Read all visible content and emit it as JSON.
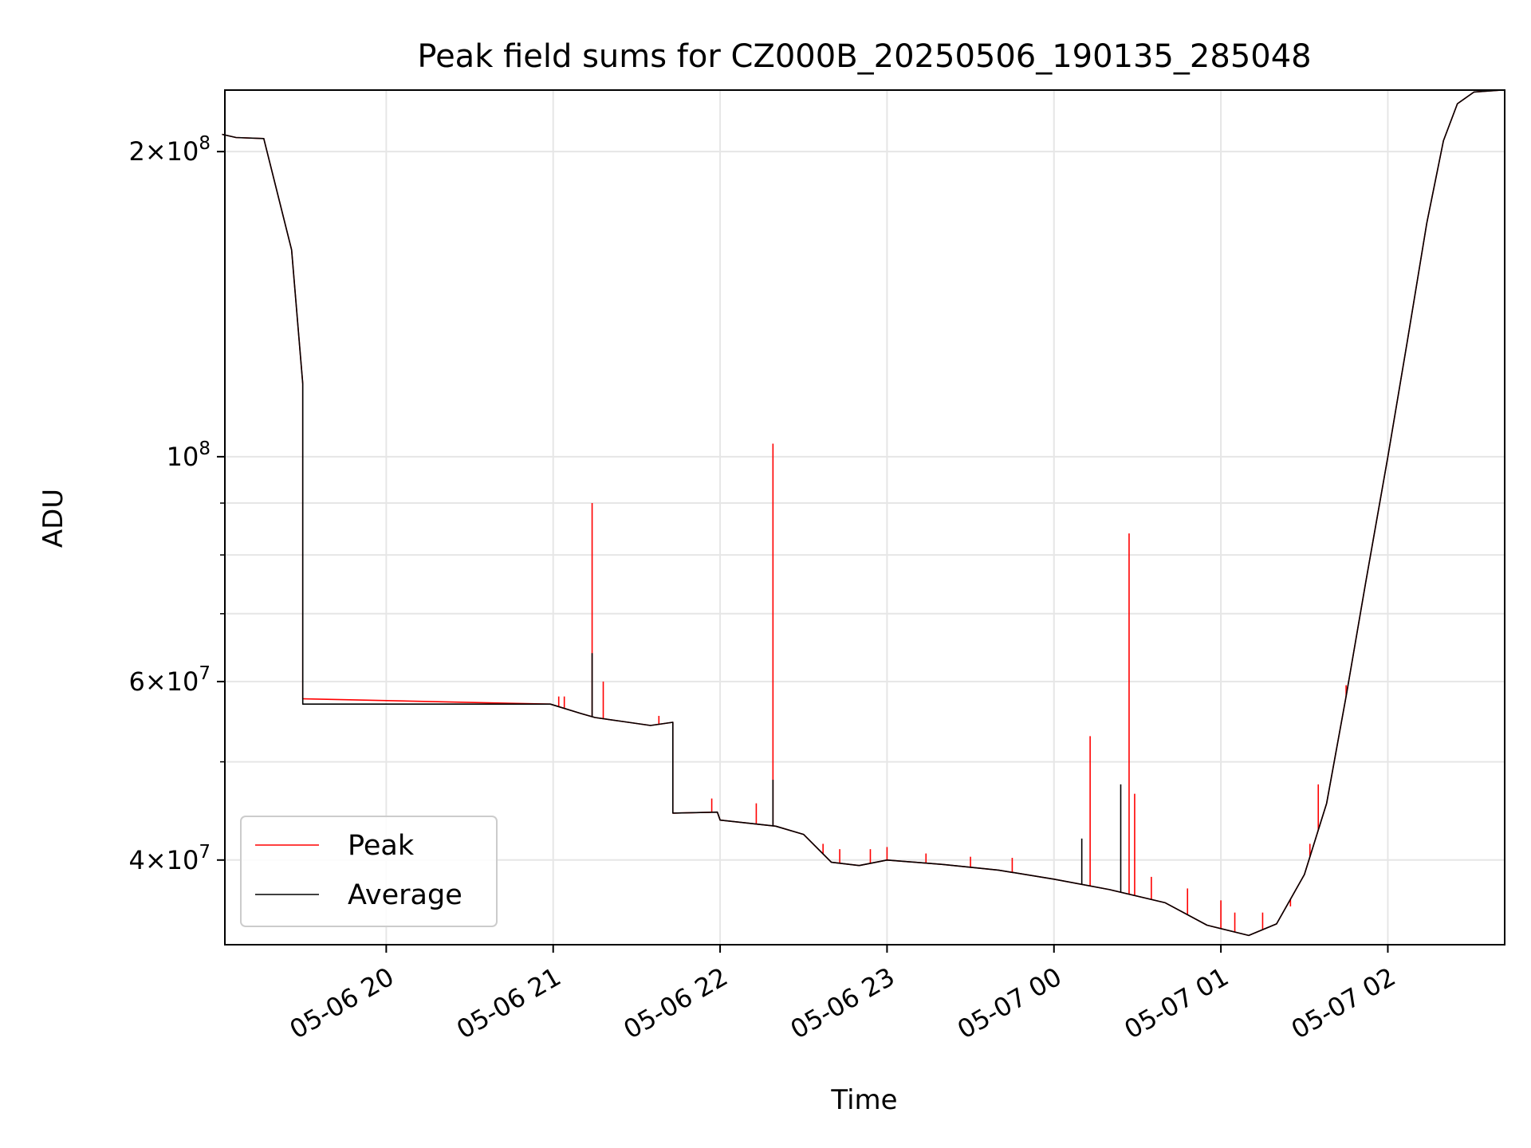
{
  "chart_data": {
    "type": "line",
    "title": "Peak field sums for CZ000B_20250506_190135_285048",
    "xlabel": "Time",
    "ylabel": "ADU",
    "x_scale": "time",
    "y_scale": "log",
    "xlim": [
      "2025-05-06 19:02",
      "2025-05-07 02:42"
    ],
    "ylim": [
      33000000,
      230000000
    ],
    "grid": true,
    "legend_position": "lower-left",
    "x_ticks": [
      {
        "t": "2025-05-06 20:00",
        "label": "05-06 20"
      },
      {
        "t": "2025-05-06 21:00",
        "label": "05-06 21"
      },
      {
        "t": "2025-05-06 22:00",
        "label": "05-06 22"
      },
      {
        "t": "2025-05-06 23:00",
        "label": "05-06 23"
      },
      {
        "t": "2025-05-07 00:00",
        "label": "05-07 00"
      },
      {
        "t": "2025-05-07 01:00",
        "label": "05-07 01"
      },
      {
        "t": "2025-05-07 02:00",
        "label": "05-07 02"
      }
    ],
    "y_ticks_major": [
      {
        "value": 40000000,
        "mantissa": "4",
        "exp": "7"
      },
      {
        "value": 60000000,
        "mantissa": "6",
        "exp": "7"
      },
      {
        "value": 100000000,
        "mantissa": "",
        "exp": "8"
      },
      {
        "value": 200000000,
        "mantissa": "2",
        "exp": "8"
      }
    ],
    "y_ticks_minor": [
      50000000,
      70000000,
      80000000,
      90000000
    ],
    "series": [
      {
        "name": "Average",
        "color": "#000000",
        "points": [
          [
            "2025-05-06 19:01",
            208000000
          ],
          [
            "2025-05-06 19:06",
            206500000
          ],
          [
            "2025-05-06 19:16",
            206000000
          ],
          [
            "2025-05-06 19:26",
            160000000
          ],
          [
            "2025-05-06 19:30",
            118000000
          ],
          [
            "2025-05-06 19:30",
            57000000
          ],
          [
            "2025-05-06 20:59",
            57000000
          ],
          [
            "2025-05-06 21:10",
            55800000
          ],
          [
            "2025-05-06 21:15",
            55300000
          ],
          [
            "2025-05-06 21:25",
            54800000
          ],
          [
            "2025-05-06 21:35",
            54300000
          ],
          [
            "2025-05-06 21:43",
            54700000
          ],
          [
            "2025-05-06 21:43",
            44500000
          ],
          [
            "2025-05-06 21:59",
            44600000
          ],
          [
            "2025-05-06 22:00",
            43800000
          ],
          [
            "2025-05-06 22:20",
            43200000
          ],
          [
            "2025-05-06 22:30",
            42400000
          ],
          [
            "2025-05-06 22:40",
            39800000
          ],
          [
            "2025-05-06 22:50",
            39500000
          ],
          [
            "2025-05-06 23:00",
            40000000
          ],
          [
            "2025-05-06 23:20",
            39600000
          ],
          [
            "2025-05-06 23:40",
            39100000
          ],
          [
            "2025-05-07 00:00",
            38300000
          ],
          [
            "2025-05-07 00:20",
            37400000
          ],
          [
            "2025-05-07 00:40",
            36300000
          ],
          [
            "2025-05-07 00:55",
            34500000
          ],
          [
            "2025-05-07 01:10",
            33700000
          ],
          [
            "2025-05-07 01:20",
            34600000
          ],
          [
            "2025-05-07 01:30",
            38700000
          ],
          [
            "2025-05-07 01:38",
            45500000
          ],
          [
            "2025-05-07 01:45",
            58000000
          ],
          [
            "2025-05-07 01:52",
            75000000
          ],
          [
            "2025-05-07 02:00",
            100000000
          ],
          [
            "2025-05-07 02:07",
            130000000
          ],
          [
            "2025-05-07 02:14",
            170000000
          ],
          [
            "2025-05-07 02:20",
            205000000
          ],
          [
            "2025-05-07 02:25",
            223000000
          ],
          [
            "2025-05-07 02:31",
            229000000
          ],
          [
            "2025-05-07 02:41",
            230000000
          ]
        ],
        "spikes": [
          [
            "2025-05-06 21:14",
            64000000
          ],
          [
            "2025-05-06 22:19",
            48000000
          ],
          [
            "2025-05-07 00:10",
            42000000
          ],
          [
            "2025-05-07 00:24",
            47500000
          ]
        ]
      },
      {
        "name": "Peak",
        "color": "#ff0000",
        "points": [
          [
            "2025-05-06 19:01",
            208000000
          ],
          [
            "2025-05-06 19:06",
            206500000
          ],
          [
            "2025-05-06 19:16",
            206000000
          ],
          [
            "2025-05-06 19:26",
            160000000
          ],
          [
            "2025-05-06 19:30",
            118000000
          ],
          [
            "2025-05-06 19:30",
            57700000
          ],
          [
            "2025-05-06 20:59",
            57000000
          ],
          [
            "2025-05-06 21:10",
            55800000
          ],
          [
            "2025-05-06 21:15",
            55300000
          ],
          [
            "2025-05-06 21:25",
            54800000
          ],
          [
            "2025-05-06 21:35",
            54300000
          ],
          [
            "2025-05-06 21:43",
            54700000
          ],
          [
            "2025-05-06 21:43",
            44500000
          ],
          [
            "2025-05-06 21:59",
            44600000
          ],
          [
            "2025-05-06 22:00",
            43800000
          ],
          [
            "2025-05-06 22:20",
            43200000
          ],
          [
            "2025-05-06 22:30",
            42400000
          ],
          [
            "2025-05-06 22:40",
            39800000
          ],
          [
            "2025-05-06 22:50",
            39500000
          ],
          [
            "2025-05-06 23:00",
            40000000
          ],
          [
            "2025-05-06 23:20",
            39600000
          ],
          [
            "2025-05-06 23:40",
            39100000
          ],
          [
            "2025-05-07 00:00",
            38300000
          ],
          [
            "2025-05-07 00:20",
            37400000
          ],
          [
            "2025-05-07 00:40",
            36300000
          ],
          [
            "2025-05-07 00:55",
            34500000
          ],
          [
            "2025-05-07 01:10",
            33700000
          ],
          [
            "2025-05-07 01:20",
            34600000
          ],
          [
            "2025-05-07 01:30",
            38700000
          ],
          [
            "2025-05-07 01:38",
            45500000
          ],
          [
            "2025-05-07 01:45",
            58000000
          ],
          [
            "2025-05-07 01:52",
            75000000
          ],
          [
            "2025-05-07 02:00",
            100000000
          ],
          [
            "2025-05-07 02:07",
            130000000
          ],
          [
            "2025-05-07 02:14",
            170000000
          ],
          [
            "2025-05-07 02:20",
            205000000
          ],
          [
            "2025-05-07 02:25",
            223000000
          ],
          [
            "2025-05-07 02:31",
            229000000
          ],
          [
            "2025-05-07 02:41",
            230000000
          ]
        ],
        "spikes": [
          [
            "2025-05-06 21:02",
            58000000
          ],
          [
            "2025-05-06 21:04",
            58000000
          ],
          [
            "2025-05-06 21:14",
            90000000
          ],
          [
            "2025-05-06 21:18",
            60000000
          ],
          [
            "2025-05-06 21:38",
            55500000
          ],
          [
            "2025-05-06 21:57",
            46000000
          ],
          [
            "2025-05-06 22:13",
            45500000
          ],
          [
            "2025-05-06 22:19",
            103000000
          ],
          [
            "2025-05-06 22:37",
            41500000
          ],
          [
            "2025-05-06 22:43",
            41000000
          ],
          [
            "2025-05-06 22:54",
            41000000
          ],
          [
            "2025-05-06 23:00",
            41200000
          ],
          [
            "2025-05-06 23:14",
            40600000
          ],
          [
            "2025-05-06 23:30",
            40300000
          ],
          [
            "2025-05-06 23:45",
            40200000
          ],
          [
            "2025-05-07 00:13",
            53000000
          ],
          [
            "2025-05-07 00:27",
            84000000
          ],
          [
            "2025-05-07 00:29",
            46500000
          ],
          [
            "2025-05-07 00:35",
            38500000
          ],
          [
            "2025-05-07 00:48",
            37500000
          ],
          [
            "2025-05-07 01:00",
            36500000
          ],
          [
            "2025-05-07 01:05",
            35500000
          ],
          [
            "2025-05-07 01:15",
            35500000
          ],
          [
            "2025-05-07 01:25",
            36000000
          ],
          [
            "2025-05-07 01:32",
            41500000
          ],
          [
            "2025-05-07 01:35",
            47500000
          ],
          [
            "2025-05-07 01:45",
            59500000
          ]
        ]
      }
    ]
  }
}
